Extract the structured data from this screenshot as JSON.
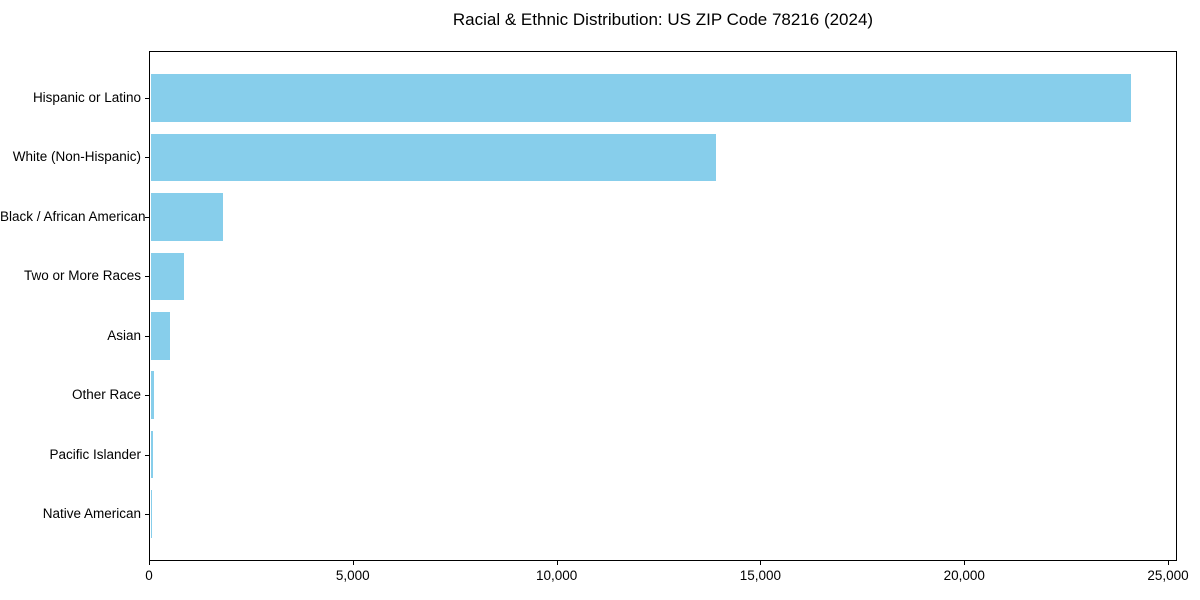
{
  "chart_data": {
    "type": "bar",
    "orientation": "horizontal",
    "title": "Racial & Ethnic Distribution: US ZIP Code 78216 (2024)",
    "categories": [
      "Hispanic or Latino",
      "White (Non-Hispanic)",
      "Black / African American",
      "Two or More Races",
      "Asian",
      "Other Race",
      "Pacific Islander",
      "Native American"
    ],
    "values": [
      24040,
      13860,
      1770,
      810,
      470,
      75,
      60,
      20
    ],
    "xlabel": "",
    "ylabel": "",
    "xlim": [
      0,
      25220
    ],
    "xticks": {
      "values": [
        0,
        5000,
        10000,
        15000,
        20000,
        25000
      ],
      "labels": [
        "0",
        "5,000",
        "10,000",
        "15,000",
        "20,000",
        "25,000"
      ]
    },
    "grid": false,
    "legend_position": "none",
    "bar_color": "#87CEEB",
    "axis_color": "#000000",
    "text_color": "#000000",
    "background_color": "#ffffff"
  }
}
